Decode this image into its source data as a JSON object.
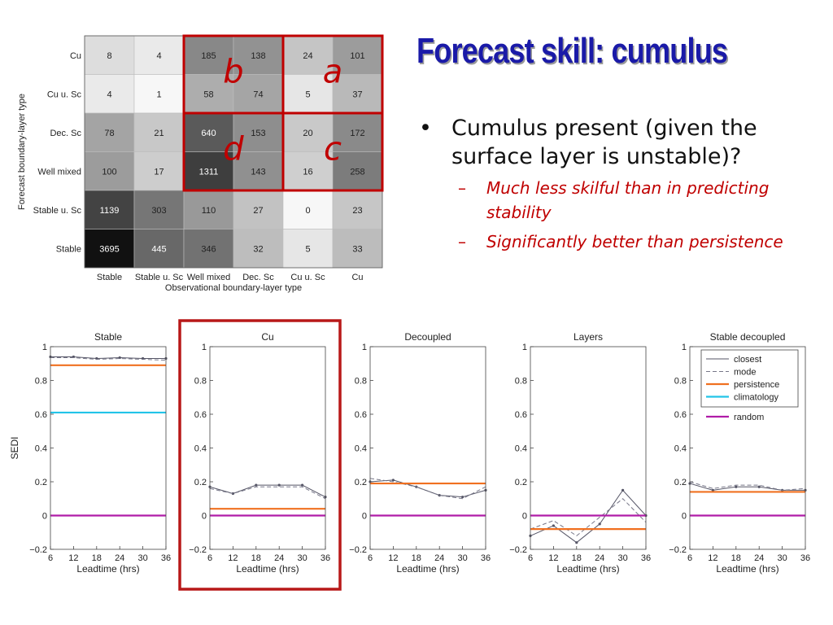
{
  "slide": {
    "title": "Forecast skill: cumulus",
    "bullet": "Cumulus present (given the surface layer is unstable)?",
    "sub_bullets": [
      "Much less skilful than in predicting stability",
      "Significantly better than persistence"
    ]
  },
  "chart_data": [
    {
      "type": "heatmap",
      "title": "",
      "xlabel": "Observational boundary-layer type",
      "ylabel": "Forecast boundary-layer type",
      "x_categories": [
        "Stable",
        "Stable u. Sc",
        "Well mixed",
        "Dec. Sc",
        "Cu u. Sc",
        "Cu"
      ],
      "y_categories": [
        "Cu",
        "Cu u. Sc",
        "Dec. Sc",
        "Well mixed",
        "Stable u. Sc",
        "Stable"
      ],
      "values": [
        [
          8,
          4,
          185,
          138,
          24,
          101
        ],
        [
          4,
          1,
          58,
          74,
          5,
          37
        ],
        [
          78,
          21,
          640,
          153,
          20,
          172
        ],
        [
          100,
          17,
          1311,
          143,
          16,
          258
        ],
        [
          1139,
          303,
          110,
          27,
          0,
          23
        ],
        [
          3695,
          445,
          346,
          32,
          5,
          33
        ]
      ],
      "annotations": [
        {
          "label": "b",
          "region_rows": [
            "Cu",
            "Cu u. Sc"
          ],
          "region_cols": [
            "Well mixed",
            "Dec. Sc"
          ]
        },
        {
          "label": "a",
          "region_rows": [
            "Cu",
            "Cu u. Sc"
          ],
          "region_cols": [
            "Cu u. Sc",
            "Cu"
          ]
        },
        {
          "label": "d",
          "region_rows": [
            "Dec. Sc",
            "Well mixed"
          ],
          "region_cols": [
            "Well mixed",
            "Dec. Sc"
          ]
        },
        {
          "label": "c",
          "region_rows": [
            "Dec. Sc",
            "Well mixed"
          ],
          "region_cols": [
            "Cu u. Sc",
            "Cu"
          ]
        }
      ],
      "annotation_color": "#c00000"
    },
    {
      "type": "line",
      "panels": [
        {
          "title": "Stable",
          "highlight": false,
          "series": [
            {
              "name": "closest",
              "x": [
                6,
                12,
                18,
                24,
                30,
                36
              ],
              "y": [
                0.94,
                0.94,
                0.93,
                0.935,
                0.93,
                0.93
              ]
            },
            {
              "name": "mode",
              "x": [
                6,
                12,
                18,
                24,
                30,
                36
              ],
              "y": [
                0.935,
                0.935,
                0.925,
                0.93,
                0.925,
                0.92
              ]
            },
            {
              "name": "persistence",
              "x": [
                6,
                36
              ],
              "y": [
                0.89,
                0.89
              ]
            },
            {
              "name": "climatology",
              "x": [
                6,
                36
              ],
              "y": [
                0.61,
                0.61
              ]
            },
            {
              "name": "random",
              "x": [
                6,
                36
              ],
              "y": [
                0,
                0
              ]
            }
          ]
        },
        {
          "title": "Cu",
          "highlight": true,
          "series": [
            {
              "name": "closest",
              "x": [
                6,
                12,
                18,
                24,
                30,
                36
              ],
              "y": [
                0.17,
                0.13,
                0.18,
                0.18,
                0.18,
                0.11
              ]
            },
            {
              "name": "mode",
              "x": [
                6,
                12,
                18,
                24,
                30,
                36
              ],
              "y": [
                0.16,
                0.13,
                0.17,
                0.17,
                0.17,
                0.1
              ]
            },
            {
              "name": "persistence",
              "x": [
                6,
                36
              ],
              "y": [
                0.04,
                0.04
              ]
            },
            {
              "name": "random",
              "x": [
                6,
                36
              ],
              "y": [
                0,
                0
              ]
            }
          ]
        },
        {
          "title": "Decoupled",
          "highlight": false,
          "series": [
            {
              "name": "closest",
              "x": [
                6,
                12,
                18,
                24,
                30,
                36
              ],
              "y": [
                0.2,
                0.21,
                0.17,
                0.12,
                0.11,
                0.15
              ]
            },
            {
              "name": "mode",
              "x": [
                6,
                12,
                18,
                24,
                30,
                36
              ],
              "y": [
                0.22,
                0.2,
                0.17,
                0.12,
                0.1,
                0.17
              ]
            },
            {
              "name": "persistence",
              "x": [
                6,
                36
              ],
              "y": [
                0.19,
                0.19
              ]
            },
            {
              "name": "random",
              "x": [
                6,
                36
              ],
              "y": [
                0,
                0
              ]
            }
          ]
        },
        {
          "title": "Layers",
          "highlight": false,
          "series": [
            {
              "name": "closest",
              "x": [
                6,
                12,
                18,
                24,
                30,
                36
              ],
              "y": [
                -0.12,
                -0.06,
                -0.16,
                -0.05,
                0.15,
                0.0
              ]
            },
            {
              "name": "mode",
              "x": [
                6,
                12,
                18,
                24,
                30,
                36
              ],
              "y": [
                -0.08,
                -0.03,
                -0.12,
                -0.01,
                0.1,
                -0.04
              ]
            },
            {
              "name": "persistence",
              "x": [
                6,
                36
              ],
              "y": [
                -0.08,
                -0.08
              ]
            },
            {
              "name": "random",
              "x": [
                6,
                36
              ],
              "y": [
                0,
                0
              ]
            }
          ]
        },
        {
          "title": "Stable decoupled",
          "highlight": false,
          "series": [
            {
              "name": "closest",
              "x": [
                6,
                12,
                18,
                24,
                30,
                36
              ],
              "y": [
                0.19,
                0.15,
                0.17,
                0.17,
                0.15,
                0.15
              ]
            },
            {
              "name": "mode",
              "x": [
                6,
                12,
                18,
                24,
                30,
                36
              ],
              "y": [
                0.2,
                0.16,
                0.18,
                0.18,
                0.15,
                0.16
              ]
            },
            {
              "name": "persistence",
              "x": [
                6,
                36
              ],
              "y": [
                0.14,
                0.14
              ]
            },
            {
              "name": "random",
              "x": [
                6,
                36
              ],
              "y": [
                0,
                0
              ]
            }
          ]
        }
      ],
      "xlabel": "Leadtime (hrs)",
      "ylabel": "SEDI",
      "xlim": [
        6,
        36
      ],
      "ylim": [
        -0.2,
        1
      ],
      "xticks": [
        6,
        12,
        18,
        24,
        30,
        36
      ],
      "yticks": [
        -0.2,
        0,
        0.2,
        0.4,
        0.6,
        0.8,
        1
      ],
      "legend": {
        "location": "top-right of last panel",
        "entries": [
          "closest",
          "mode",
          "persistence",
          "climatology",
          "random"
        ]
      },
      "colors": {
        "closest": "#555566",
        "mode": "#777788",
        "persistence": "#f07020",
        "climatology": "#22c4e8",
        "random": "#b01ca8",
        "highlight": "#b81818"
      }
    }
  ]
}
